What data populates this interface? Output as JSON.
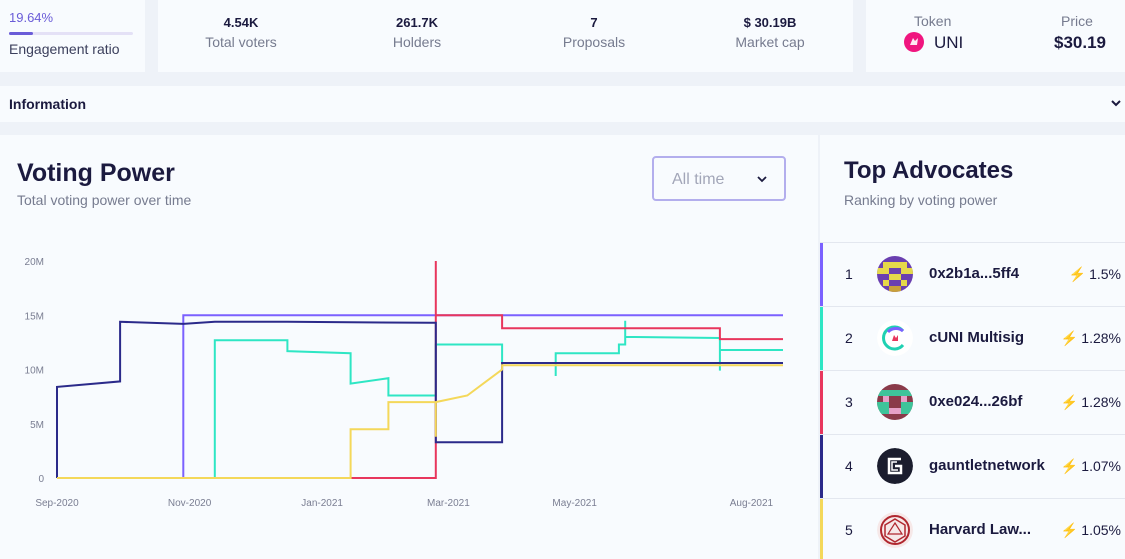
{
  "engagement": {
    "value": "19.64%",
    "ratio": 0.1964,
    "label": "Engagement ratio"
  },
  "stats": [
    {
      "value": "4.54K",
      "label": "Total voters"
    },
    {
      "value": "261.7K",
      "label": "Holders"
    },
    {
      "value": "7",
      "label": "Proposals"
    },
    {
      "value": "$ 30.19B",
      "label": "Market cap"
    }
  ],
  "token": {
    "token_label": "Token",
    "name": "UNI",
    "price_label": "Price",
    "price": "$30.19",
    "logo_color": "#f0157f",
    "icon": "uniswap-unicorn-icon"
  },
  "information": {
    "label": "Information"
  },
  "voting_power": {
    "title": "Voting Power",
    "subtitle": "Total voting power over time",
    "range_select": "All time"
  },
  "chart_data": {
    "type": "line",
    "title": "Voting Power",
    "xlabel": "",
    "ylabel": "",
    "x_ticks": [
      "Sep-2020",
      "Nov-2020",
      "Jan-2021",
      "Mar-2021",
      "May-2021",
      "Aug-2021"
    ],
    "y_ticks": [
      "0",
      "5M",
      "10M",
      "15M",
      "20M"
    ],
    "ylim": [
      0,
      20000000
    ],
    "xlim": [
      0,
      11.5
    ],
    "grid": false,
    "series": [
      {
        "name": "0x2b1a...5ff4",
        "color": "#7b61ff",
        "points": [
          [
            2.0,
            0
          ],
          [
            2.0,
            15.0
          ],
          [
            11.5,
            15.0
          ]
        ]
      },
      {
        "name": "cUNI Multisig",
        "color": "#2ee6c4",
        "points": [
          [
            2.5,
            0
          ],
          [
            2.5,
            12.7
          ],
          [
            3.65,
            12.7
          ],
          [
            3.65,
            11.7
          ],
          [
            4.65,
            11.5
          ],
          [
            4.65,
            8.7
          ],
          [
            5.25,
            9.2
          ],
          [
            5.25,
            7.6
          ],
          [
            6.0,
            7.6
          ],
          [
            6.0,
            12.3
          ],
          [
            7.05,
            12.3
          ],
          [
            7.05,
            10.6
          ],
          [
            7.9,
            10.6
          ],
          [
            7.9,
            9.4
          ],
          [
            7.9,
            11.5
          ],
          [
            8.9,
            11.5
          ],
          [
            8.9,
            12.3
          ],
          [
            9.0,
            12.3
          ],
          [
            9.0,
            14.5
          ],
          [
            9.0,
            13.0
          ],
          [
            10.5,
            12.9
          ],
          [
            10.5,
            9.9
          ],
          [
            10.5,
            11.8
          ],
          [
            11.5,
            11.8
          ]
        ]
      },
      {
        "name": "0xe024...26bf",
        "color": "#e8365d",
        "points": [
          [
            4.65,
            0
          ],
          [
            6.0,
            0
          ],
          [
            6.0,
            20.0
          ],
          [
            6.0,
            15.0
          ],
          [
            7.05,
            15.0
          ],
          [
            7.05,
            13.8
          ],
          [
            10.5,
            13.8
          ],
          [
            10.5,
            12.8
          ],
          [
            11.5,
            12.8
          ]
        ]
      },
      {
        "name": "gauntletnetwork",
        "color": "#2b2a8a",
        "points": [
          [
            0,
            0
          ],
          [
            0,
            8.4
          ],
          [
            1.0,
            8.9
          ],
          [
            1.0,
            14.4
          ],
          [
            2.0,
            14.2
          ],
          [
            2.5,
            14.4
          ],
          [
            3.65,
            14.4
          ],
          [
            3.65,
            14.4
          ],
          [
            5.9,
            14.3
          ],
          [
            6.0,
            14.3
          ],
          [
            6.0,
            3.3
          ],
          [
            7.05,
            3.3
          ],
          [
            7.05,
            10.6
          ],
          [
            11.5,
            10.6
          ]
        ]
      },
      {
        "name": "Harvard Law...",
        "color": "#f4d85a",
        "points": [
          [
            0,
            0
          ],
          [
            4.65,
            0
          ],
          [
            4.65,
            4.5
          ],
          [
            5.25,
            4.5
          ],
          [
            5.25,
            7.0
          ],
          [
            6.0,
            7.0
          ],
          [
            6.0,
            3.8
          ],
          [
            6.0,
            7.0
          ],
          [
            6.5,
            7.6
          ],
          [
            7.05,
            10.0
          ],
          [
            7.05,
            10.4
          ],
          [
            11.5,
            10.4
          ]
        ]
      }
    ]
  },
  "advocates": {
    "title": "Top Advocates",
    "subtitle": "Ranking by voting power",
    "items": [
      {
        "rank": "1",
        "name": "0x2b1a...5ff4",
        "pct": "1.5%",
        "color": "#7b61ff",
        "avatar": "pixel-avatar-1"
      },
      {
        "rank": "2",
        "name": "cUNI Multisig",
        "pct": "1.28%",
        "color": "#2ee6c4",
        "avatar": "cuni-logo-icon"
      },
      {
        "rank": "3",
        "name": "0xe024...26bf",
        "pct": "1.28%",
        "color": "#e8365d",
        "avatar": "pixel-avatar-3"
      },
      {
        "rank": "4",
        "name": "gauntletnetwork",
        "pct": "1.07%",
        "color": "#2b2a8a",
        "avatar": "gauntlet-logo-icon"
      },
      {
        "rank": "5",
        "name": "Harvard Law...",
        "pct": "1.05%",
        "color": "#f4d85a",
        "avatar": "harvard-law-logo-icon"
      }
    ]
  }
}
